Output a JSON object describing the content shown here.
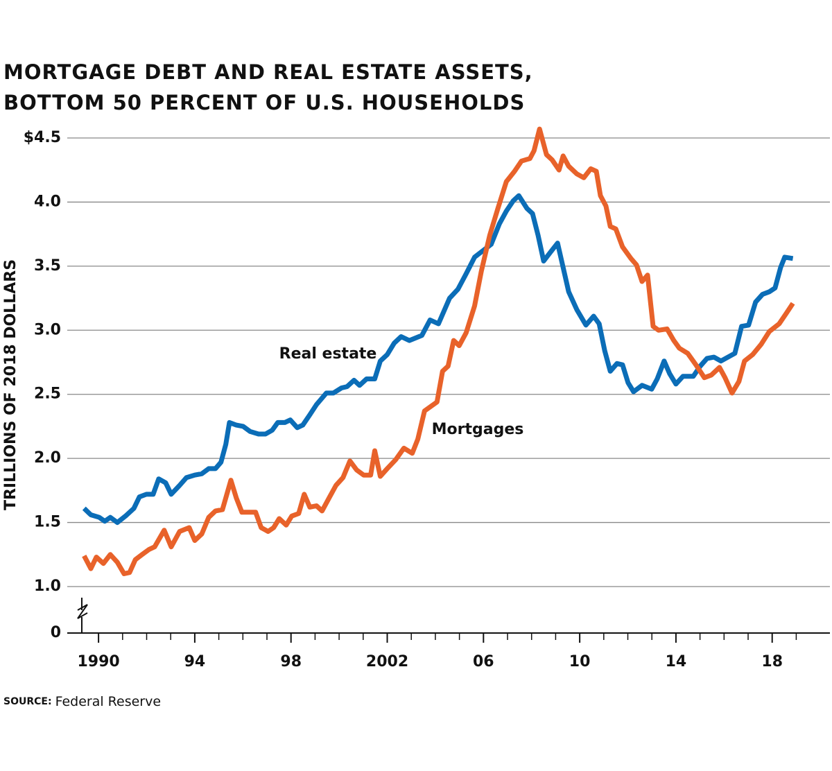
{
  "chart_data": {
    "type": "line",
    "title": [
      "MORTGAGE DEBT AND REAL ESTATE ASSETS,",
      "BOTTOM 50 PERCENT OF U.S. HOUSEHOLDS"
    ],
    "ylabel": "TRILLIONS OF 2018 DOLLARS",
    "source_label": "SOURCE:",
    "source": "Federal Reserve",
    "xlim": [
      1988.7,
      2020.4
    ],
    "xticks": [
      {
        "value": 1990,
        "label": "1990"
      },
      {
        "value": 1994,
        "label": "94"
      },
      {
        "value": 1998,
        "label": "98"
      },
      {
        "value": 2002,
        "label": "2002"
      },
      {
        "value": 2006,
        "label": "06"
      },
      {
        "value": 2010,
        "label": "10"
      },
      {
        "value": 2014,
        "label": "14"
      },
      {
        "value": 2018,
        "label": "18"
      }
    ],
    "xminor_ticks": [
      1991,
      1992,
      1993,
      1995,
      1996,
      1997,
      1999,
      2000,
      2001,
      2003,
      2004,
      2005,
      2007,
      2008,
      2009,
      2011,
      2012,
      2013,
      2015,
      2016,
      2017,
      2019
    ],
    "ylim": [
      0,
      4.5
    ],
    "yticks": [
      0,
      {
        "value": 1,
        "label": "1.0"
      },
      1.5,
      {
        "value": 2,
        "label": "2.0"
      },
      2.5,
      {
        "value": 3,
        "label": "3.0"
      },
      3.5,
      {
        "value": 4,
        "label": "4.0"
      },
      {
        "value": 4.5,
        "label": "$4.5"
      }
    ],
    "axis_break": true,
    "grid": true,
    "series": [
      {
        "name": "Real estate",
        "color": "#0b6db7",
        "x": [
          1989.4,
          1989.68,
          1990.03,
          1990.26,
          1990.49,
          1990.78,
          1991.12,
          1991.47,
          1991.7,
          1991.99,
          1992.27,
          1992.5,
          1992.79,
          1993.02,
          1993.37,
          1993.65,
          1994.0,
          1994.29,
          1994.58,
          1994.86,
          1995.09,
          1995.29,
          1995.44,
          1995.73,
          1996.01,
          1996.3,
          1996.65,
          1996.94,
          1997.22,
          1997.45,
          1997.74,
          1997.97,
          1998.26,
          1998.49,
          1998.78,
          1999.06,
          1999.47,
          1999.76,
          2000.1,
          2000.33,
          2000.62,
          2000.85,
          2001.14,
          2001.48,
          2001.71,
          2002.0,
          2002.29,
          2002.58,
          2002.92,
          2003.44,
          2003.78,
          2004.13,
          2004.59,
          2004.94,
          2005.28,
          2005.63,
          2005.97,
          2006.32,
          2006.66,
          2006.95,
          2007.24,
          2007.47,
          2007.81,
          2008.04,
          2008.27,
          2008.5,
          2008.79,
          2009.08,
          2009.31,
          2009.54,
          2009.88,
          2010.26,
          2010.58,
          2010.81,
          2011.04,
          2011.27,
          2011.55,
          2011.78,
          2012.01,
          2012.24,
          2012.59,
          2012.99,
          2013.22,
          2013.51,
          2013.74,
          2014.0,
          2014.29,
          2014.72,
          2015.01,
          2015.29,
          2015.58,
          2015.87,
          2016.45,
          2016.73,
          2017.02,
          2017.31,
          2017.6,
          2017.88,
          2018.12,
          2018.35,
          2018.52,
          2018.86
        ],
        "values": [
          1.61,
          1.56,
          1.54,
          1.51,
          1.54,
          1.5,
          1.55,
          1.61,
          1.7,
          1.72,
          1.72,
          1.84,
          1.81,
          1.72,
          1.79,
          1.85,
          1.87,
          1.88,
          1.92,
          1.92,
          1.97,
          2.11,
          2.28,
          2.26,
          2.25,
          2.21,
          2.19,
          2.19,
          2.22,
          2.28,
          2.28,
          2.3,
          2.24,
          2.26,
          2.34,
          2.42,
          2.51,
          2.51,
          2.55,
          2.56,
          2.61,
          2.57,
          2.62,
          2.62,
          2.76,
          2.81,
          2.9,
          2.95,
          2.92,
          2.96,
          3.08,
          3.05,
          3.25,
          3.32,
          3.44,
          3.57,
          3.62,
          3.67,
          3.83,
          3.93,
          4.01,
          4.05,
          3.95,
          3.91,
          3.74,
          3.54,
          3.61,
          3.68,
          3.49,
          3.3,
          3.16,
          3.04,
          3.11,
          3.05,
          2.84,
          2.68,
          2.74,
          2.73,
          2.59,
          2.52,
          2.57,
          2.54,
          2.62,
          2.76,
          2.66,
          2.58,
          2.64,
          2.64,
          2.72,
          2.78,
          2.79,
          2.76,
          2.82,
          3.03,
          3.04,
          3.22,
          3.28,
          3.3,
          3.33,
          3.49,
          3.57,
          3.56
        ]
      },
      {
        "name": "Mortgages",
        "color": "#e8622a",
        "x": [
          1989.4,
          1989.68,
          1989.91,
          1990.2,
          1990.49,
          1990.78,
          1991.06,
          1991.29,
          1991.53,
          1991.81,
          1992.1,
          1992.33,
          1992.73,
          1993.02,
          1993.37,
          1993.77,
          1994.0,
          1994.29,
          1994.58,
          1994.86,
          1995.15,
          1995.5,
          1995.73,
          1995.96,
          1996.24,
          1996.53,
          1996.76,
          1997.05,
          1997.28,
          1997.51,
          1997.8,
          1998.03,
          1998.32,
          1998.55,
          1998.78,
          1999.06,
          1999.29,
          1999.58,
          1999.87,
          2000.16,
          2000.45,
          2000.73,
          2001.02,
          2001.31,
          2001.48,
          2001.71,
          2002.0,
          2002.35,
          2002.69,
          2003.04,
          2003.27,
          2003.55,
          2003.84,
          2004.07,
          2004.3,
          2004.53,
          2004.76,
          2004.99,
          2005.28,
          2005.63,
          2005.91,
          2006.26,
          2006.6,
          2006.95,
          2007.29,
          2007.58,
          2007.93,
          2008.1,
          2008.33,
          2008.62,
          2008.85,
          2009.14,
          2009.31,
          2009.54,
          2009.88,
          2010.17,
          2010.46,
          2010.69,
          2010.86,
          2011.09,
          2011.27,
          2011.5,
          2011.78,
          2012.13,
          2012.36,
          2012.59,
          2012.82,
          2013.05,
          2013.28,
          2013.63,
          2013.91,
          2014.14,
          2014.49,
          2014.83,
          2015.18,
          2015.47,
          2015.81,
          2016.04,
          2016.33,
          2016.62,
          2016.85,
          2017.19,
          2017.54,
          2017.88,
          2018.29,
          2018.58,
          2018.86
        ],
        "values": [
          1.24,
          1.14,
          1.23,
          1.18,
          1.25,
          1.19,
          1.1,
          1.11,
          1.21,
          1.25,
          1.29,
          1.31,
          1.44,
          1.31,
          1.43,
          1.46,
          1.36,
          1.41,
          1.54,
          1.59,
          1.6,
          1.83,
          1.69,
          1.58,
          1.58,
          1.58,
          1.46,
          1.43,
          1.46,
          1.53,
          1.48,
          1.55,
          1.57,
          1.72,
          1.62,
          1.63,
          1.59,
          1.69,
          1.79,
          1.85,
          1.98,
          1.91,
          1.87,
          1.87,
          2.06,
          1.86,
          1.92,
          1.99,
          2.08,
          2.04,
          2.15,
          2.37,
          2.41,
          2.44,
          2.68,
          2.72,
          2.92,
          2.88,
          2.98,
          3.19,
          3.46,
          3.74,
          3.95,
          4.16,
          4.24,
          4.32,
          4.34,
          4.4,
          4.57,
          4.37,
          4.33,
          4.25,
          4.36,
          4.28,
          4.22,
          4.19,
          4.26,
          4.24,
          4.05,
          3.97,
          3.81,
          3.79,
          3.65,
          3.56,
          3.51,
          3.38,
          3.43,
          3.03,
          3.0,
          3.01,
          2.92,
          2.86,
          2.82,
          2.73,
          2.63,
          2.65,
          2.71,
          2.63,
          2.51,
          2.6,
          2.76,
          2.81,
          2.89,
          2.99,
          3.05,
          3.13,
          3.21
        ]
      }
    ]
  }
}
